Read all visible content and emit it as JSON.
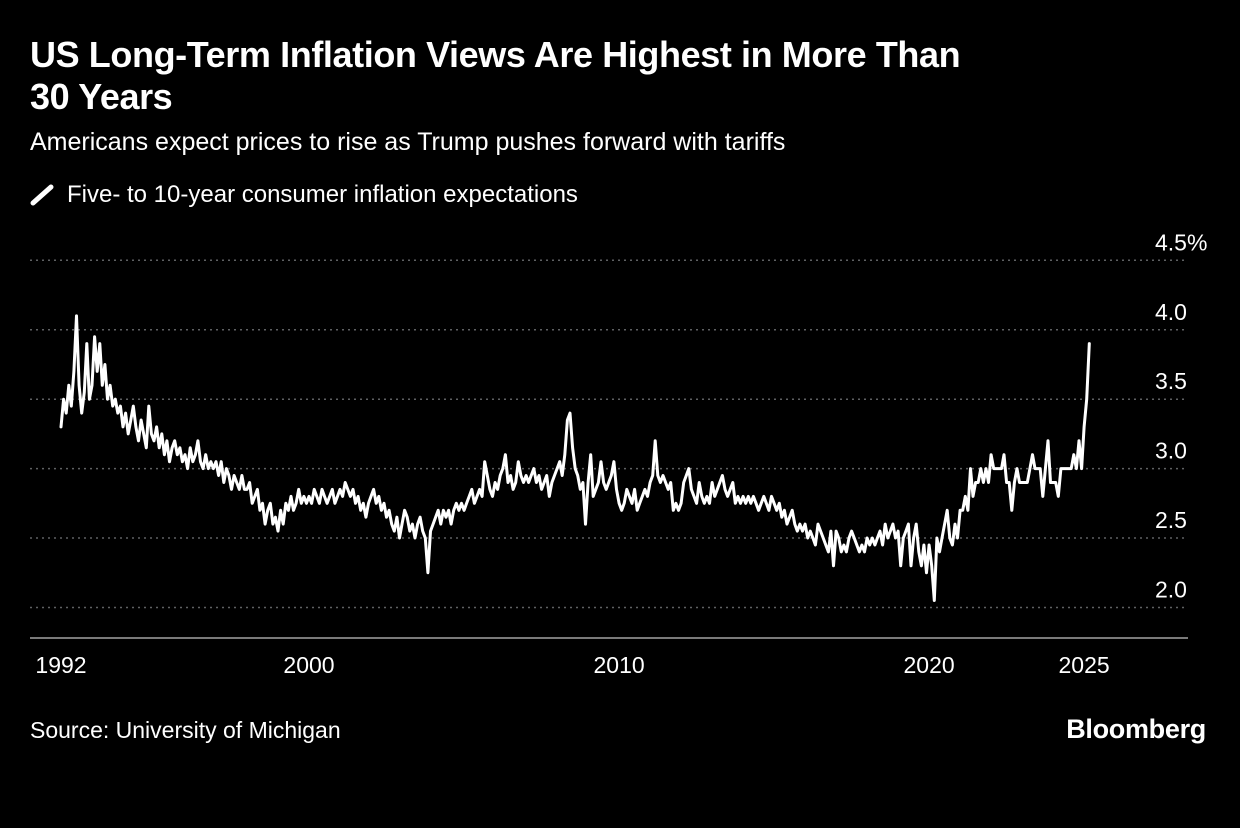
{
  "header": {
    "title": "US Long-Term Inflation Views Are Highest in More Than\n30 Years",
    "subtitle": "Americans expect prices to rise as Trump pushes forward with tariffs"
  },
  "legend": {
    "label": "Five- to 10-year consumer inflation expectations",
    "swatch_color": "#ffffff"
  },
  "footer": {
    "source": "Source: University of Michigan",
    "brand": "Bloomberg"
  },
  "colors": {
    "background": "#000000",
    "text": "#ffffff",
    "grid": "#5f6163",
    "axis_line": "#7a7a7a",
    "series_line": "#ffffff"
  },
  "chart_data": {
    "type": "line",
    "title": "US Long-Term Inflation Views Are Highest in More Than 30 Years",
    "subtitle": "Americans expect prices to rise as Trump pushes forward with tariffs",
    "unit": "percent",
    "grid": "horizontal-dashed",
    "legend_position": "top-left",
    "x_ticks": [
      1992,
      2000,
      2010,
      2020,
      2025
    ],
    "y_ticks": [
      2.0,
      2.5,
      3.0,
      3.5,
      4.0,
      4.5
    ],
    "y_tick_labels": [
      "2.0",
      "2.5",
      "3.0",
      "3.5",
      "4.0",
      "4.5%"
    ],
    "xlim": [
      1991.0,
      2028.35
    ],
    "ylim": [
      1.78,
      4.74
    ],
    "series": [
      {
        "name": "Five- to 10-year consumer inflation expectations",
        "color": "#ffffff",
        "frequency": "monthly",
        "x_start": 1992.0,
        "x_step": 0.0833333,
        "values": [
          3.3,
          3.5,
          3.4,
          3.6,
          3.45,
          3.7,
          4.1,
          3.6,
          3.4,
          3.55,
          3.9,
          3.5,
          3.6,
          3.95,
          3.7,
          3.9,
          3.6,
          3.75,
          3.5,
          3.6,
          3.45,
          3.5,
          3.4,
          3.45,
          3.3,
          3.4,
          3.25,
          3.35,
          3.45,
          3.3,
          3.2,
          3.35,
          3.25,
          3.15,
          3.45,
          3.25,
          3.2,
          3.3,
          3.15,
          3.25,
          3.1,
          3.2,
          3.05,
          3.15,
          3.2,
          3.1,
          3.15,
          3.05,
          3.1,
          3.0,
          3.15,
          3.05,
          3.1,
          3.2,
          3.05,
          3.0,
          3.1,
          3.0,
          3.05,
          3.0,
          3.05,
          2.95,
          3.05,
          2.9,
          3.0,
          2.95,
          2.85,
          2.95,
          2.9,
          2.85,
          2.95,
          2.85,
          2.85,
          2.9,
          2.75,
          2.8,
          2.85,
          2.7,
          2.75,
          2.6,
          2.7,
          2.75,
          2.6,
          2.65,
          2.55,
          2.7,
          2.6,
          2.75,
          2.7,
          2.8,
          2.7,
          2.75,
          2.85,
          2.75,
          2.8,
          2.75,
          2.8,
          2.75,
          2.85,
          2.8,
          2.75,
          2.85,
          2.8,
          2.75,
          2.8,
          2.85,
          2.75,
          2.8,
          2.85,
          2.8,
          2.9,
          2.85,
          2.8,
          2.85,
          2.75,
          2.8,
          2.7,
          2.75,
          2.65,
          2.75,
          2.8,
          2.85,
          2.75,
          2.8,
          2.7,
          2.75,
          2.65,
          2.7,
          2.6,
          2.55,
          2.65,
          2.5,
          2.6,
          2.7,
          2.65,
          2.55,
          2.6,
          2.5,
          2.6,
          2.65,
          2.55,
          2.5,
          2.25,
          2.55,
          2.6,
          2.65,
          2.7,
          2.6,
          2.7,
          2.65,
          2.7,
          2.6,
          2.7,
          2.75,
          2.7,
          2.75,
          2.7,
          2.75,
          2.8,
          2.85,
          2.75,
          2.8,
          2.85,
          2.8,
          3.05,
          2.95,
          2.85,
          2.8,
          2.9,
          2.85,
          2.95,
          3.0,
          3.1,
          2.9,
          2.95,
          2.85,
          2.9,
          3.05,
          2.95,
          2.9,
          2.95,
          2.9,
          2.95,
          3.0,
          2.9,
          2.95,
          2.85,
          2.9,
          2.95,
          2.8,
          2.9,
          2.95,
          3.0,
          3.05,
          2.95,
          3.1,
          3.35,
          3.4,
          3.15,
          3.0,
          2.95,
          2.85,
          2.9,
          2.6,
          2.9,
          3.1,
          2.8,
          2.85,
          2.9,
          3.05,
          2.9,
          2.85,
          2.9,
          2.95,
          3.05,
          2.85,
          2.75,
          2.7,
          2.75,
          2.85,
          2.8,
          2.75,
          2.85,
          2.7,
          2.75,
          2.8,
          2.85,
          2.8,
          2.9,
          2.95,
          3.2,
          2.95,
          2.9,
          2.95,
          2.9,
          2.85,
          2.9,
          2.7,
          2.75,
          2.7,
          2.75,
          2.9,
          2.95,
          3.0,
          2.85,
          2.8,
          2.75,
          2.9,
          2.8,
          2.75,
          2.8,
          2.75,
          2.9,
          2.8,
          2.85,
          2.9,
          2.95,
          2.85,
          2.8,
          2.85,
          2.9,
          2.75,
          2.8,
          2.75,
          2.8,
          2.75,
          2.8,
          2.75,
          2.8,
          2.75,
          2.7,
          2.75,
          2.8,
          2.75,
          2.7,
          2.8,
          2.75,
          2.7,
          2.75,
          2.65,
          2.7,
          2.6,
          2.65,
          2.7,
          2.6,
          2.55,
          2.6,
          2.55,
          2.6,
          2.5,
          2.55,
          2.5,
          2.45,
          2.6,
          2.55,
          2.5,
          2.45,
          2.4,
          2.55,
          2.3,
          2.55,
          2.5,
          2.4,
          2.45,
          2.4,
          2.5,
          2.55,
          2.5,
          2.45,
          2.4,
          2.45,
          2.4,
          2.5,
          2.45,
          2.5,
          2.45,
          2.5,
          2.55,
          2.45,
          2.6,
          2.5,
          2.55,
          2.6,
          2.5,
          2.55,
          2.3,
          2.5,
          2.55,
          2.6,
          2.3,
          2.5,
          2.6,
          2.4,
          2.3,
          2.45,
          2.25,
          2.45,
          2.3,
          2.05,
          2.5,
          2.4,
          2.5,
          2.6,
          2.7,
          2.5,
          2.45,
          2.6,
          2.5,
          2.7,
          2.7,
          2.8,
          2.7,
          3.0,
          2.8,
          2.9,
          2.9,
          3.0,
          2.9,
          3.0,
          2.9,
          3.1,
          3.0,
          3.0,
          3.0,
          3.0,
          3.1,
          2.9,
          2.9,
          2.7,
          2.9,
          3.0,
          2.9,
          2.9,
          2.9,
          2.9,
          3.0,
          3.1,
          3.0,
          3.0,
          3.0,
          2.8,
          3.0,
          3.2,
          2.9,
          2.9,
          2.9,
          2.8,
          3.0,
          3.0,
          3.0,
          3.0,
          3.0,
          3.1,
          3.0,
          3.2,
          3.0,
          3.3,
          3.5,
          3.9
        ]
      }
    ]
  }
}
